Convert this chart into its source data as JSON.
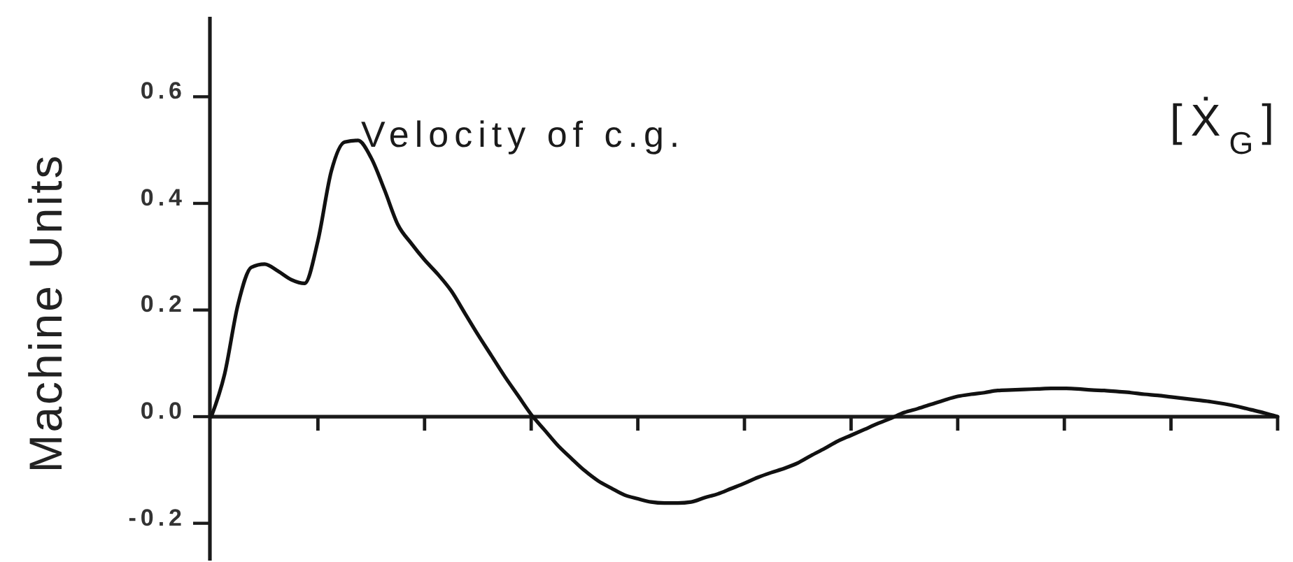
{
  "chart_data": {
    "type": "line",
    "title": "Velocity of c.g.",
    "ylabel": "Machine Units",
    "annotations": [
      "[Ẋ$_{G}$]"
    ],
    "categories": [
      null,
      null,
      null,
      null,
      null,
      null,
      null,
      null,
      null,
      null,
      null,
      null,
      null,
      null,
      null,
      null,
      null,
      null,
      null,
      null,
      null,
      null,
      null,
      null,
      null,
      null,
      null,
      null,
      null,
      null,
      null,
      null,
      null,
      null,
      null,
      null,
      null,
      null,
      null,
      null,
      null,
      null,
      null,
      null,
      null,
      null,
      null,
      null,
      null,
      null,
      null,
      null,
      null,
      null,
      null,
      null,
      null,
      null,
      null,
      null,
      null,
      null,
      null,
      null,
      null,
      null,
      null,
      null,
      null,
      null,
      null,
      null,
      null,
      null,
      null,
      null,
      null,
      null,
      null,
      null,
      null
    ],
    "series": [
      {
        "color": "#111111",
        "values": [
          0,
          0.08,
          0.21,
          0.28,
          0.286,
          0.273,
          0.257,
          0.25,
          0.33,
          0.46,
          0.515,
          0.518,
          0.485,
          0.425,
          0.36,
          0.325,
          0.294,
          0.267,
          0.236,
          0.195,
          0.154,
          0.115,
          0.076,
          0.04,
          0.004,
          -0.025,
          -0.054,
          -0.078,
          -0.101,
          -0.12,
          -0.134,
          -0.147,
          -0.154,
          -0.16,
          -0.162,
          -0.162,
          -0.16,
          -0.152,
          -0.145,
          -0.135,
          -0.125,
          -0.114,
          -0.105,
          -0.097,
          -0.087,
          -0.073,
          -0.06,
          -0.046,
          -0.035,
          -0.024,
          -0.013,
          -0.003,
          0.008,
          0.015,
          0.023,
          0.031,
          0.038,
          0.042,
          0.045,
          0.049,
          0.05,
          0.051,
          0.052,
          0.053,
          0.053,
          0.052,
          0.05,
          0.049,
          0.047,
          0.045,
          0.042,
          0.04,
          0.037,
          0.034,
          0.031,
          0.028,
          0.024,
          0.019,
          0.013,
          0.007,
          0
        ]
      }
    ],
    "ylim": [
      -0.27,
      0.75
    ],
    "yticks": [
      -0.2,
      {
        "value": 0,
        "label": "0.0"
      },
      0.2,
      0.4,
      0.6
    ]
  }
}
